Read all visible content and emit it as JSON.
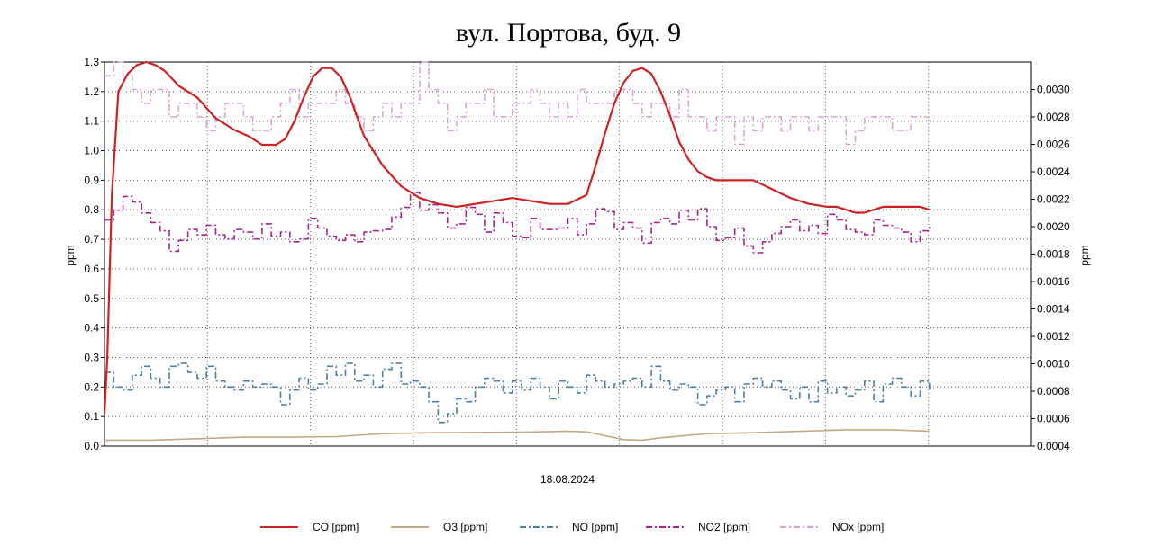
{
  "chart_data": {
    "type": "line",
    "title": "вул. Портова, буд. 9",
    "xlabel": "18.08.2024",
    "ylabel_left": "ppm",
    "ylabel_right": "ppm",
    "ylim_left": [
      0,
      1.3
    ],
    "ylim_right": [
      0.0004,
      0.0032
    ],
    "yticks_left": [
      "0.0",
      "0.1",
      "0.2",
      "0.3",
      "0.4",
      "0.5",
      "0.6",
      "0.7",
      "0.8",
      "0.9",
      "1.0",
      "1.1",
      "1.2",
      "1.3"
    ],
    "yticks_right": [
      "0.0004",
      "0.0006",
      "0.0008",
      "0.0010",
      "0.0012",
      "0.0014",
      "0.0016",
      "0.0018",
      "0.0020",
      "0.0022",
      "0.0024",
      "0.0026",
      "0.0028",
      "0.0030"
    ],
    "xlim": [
      0,
      100
    ],
    "grid": true,
    "legend_position": "bottom",
    "series": [
      {
        "name": "CO [ppm]",
        "color": "#cc2222",
        "dash": "solid",
        "axis": "left",
        "x": [
          0,
          0.3,
          0.8,
          1.5,
          2.5,
          3.5,
          4.5,
          5.5,
          6.5,
          8,
          10,
          12,
          14,
          15.5,
          17,
          18.5,
          19.5,
          20.5,
          21.5,
          22.5,
          23.5,
          24.5,
          25.5,
          26.5,
          28,
          30,
          32,
          34,
          36,
          38,
          40,
          42,
          44,
          46,
          48,
          50,
          52,
          53,
          54,
          55,
          56,
          57,
          58,
          59,
          60,
          61,
          62,
          63,
          64,
          65,
          66,
          68,
          70,
          72,
          74,
          76,
          78,
          79,
          80,
          81,
          82,
          83,
          84,
          85,
          86,
          87,
          88,
          89
        ],
        "values": [
          0.11,
          0.3,
          0.85,
          1.2,
          1.26,
          1.29,
          1.3,
          1.29,
          1.27,
          1.22,
          1.18,
          1.11,
          1.07,
          1.05,
          1.02,
          1.02,
          1.04,
          1.1,
          1.18,
          1.25,
          1.28,
          1.28,
          1.25,
          1.18,
          1.05,
          0.95,
          0.88,
          0.84,
          0.82,
          0.81,
          0.82,
          0.83,
          0.84,
          0.83,
          0.82,
          0.82,
          0.85,
          0.95,
          1.06,
          1.16,
          1.23,
          1.27,
          1.28,
          1.26,
          1.2,
          1.12,
          1.03,
          0.97,
          0.93,
          0.91,
          0.9,
          0.9,
          0.9,
          0.87,
          0.84,
          0.82,
          0.81,
          0.81,
          0.8,
          0.79,
          0.79,
          0.8,
          0.81,
          0.81,
          0.81,
          0.81,
          0.81,
          0.8
        ]
      },
      {
        "name": "O3 [ppm]",
        "color": "#c2a886",
        "dash": "solid",
        "axis": "left",
        "x": [
          0,
          5,
          10,
          15,
          20,
          25,
          30,
          35,
          40,
          45,
          50,
          52,
          54,
          56,
          58,
          60,
          65,
          70,
          75,
          80,
          85,
          89
        ],
        "values": [
          0.02,
          0.02,
          0.025,
          0.03,
          0.03,
          0.032,
          0.042,
          0.045,
          0.046,
          0.047,
          0.05,
          0.048,
          0.035,
          0.022,
          0.02,
          0.028,
          0.042,
          0.045,
          0.05,
          0.055,
          0.055,
          0.05
        ]
      },
      {
        "name": "NO [ppm]",
        "color": "#4a7f9e",
        "dash": "dashdot",
        "axis": "left",
        "x": [
          0,
          1,
          2,
          3,
          4,
          5,
          6,
          7,
          8,
          9,
          10,
          11,
          12,
          13,
          14,
          15,
          16,
          17,
          18,
          19,
          20,
          21,
          22,
          23,
          24,
          25,
          26,
          27,
          28,
          29,
          30,
          31,
          32,
          33,
          34,
          35,
          36,
          37,
          38,
          39,
          40,
          41,
          42,
          43,
          44,
          45,
          46,
          47,
          48,
          49,
          50,
          51,
          52,
          53,
          54,
          55,
          56,
          57,
          58,
          59,
          60,
          61,
          62,
          63,
          64,
          65,
          66,
          67,
          68,
          69,
          70,
          71,
          72,
          73,
          74,
          75,
          76,
          77,
          78,
          79,
          80,
          81,
          82,
          83,
          84,
          85,
          86,
          87,
          88,
          89
        ],
        "values": [
          0.25,
          0.2,
          0.19,
          0.24,
          0.27,
          0.23,
          0.2,
          0.27,
          0.28,
          0.25,
          0.23,
          0.27,
          0.22,
          0.2,
          0.19,
          0.22,
          0.2,
          0.21,
          0.2,
          0.14,
          0.19,
          0.23,
          0.19,
          0.21,
          0.27,
          0.24,
          0.28,
          0.22,
          0.24,
          0.2,
          0.26,
          0.28,
          0.21,
          0.22,
          0.2,
          0.15,
          0.08,
          0.11,
          0.16,
          0.15,
          0.2,
          0.23,
          0.22,
          0.18,
          0.22,
          0.19,
          0.23,
          0.2,
          0.16,
          0.22,
          0.2,
          0.18,
          0.24,
          0.22,
          0.2,
          0.21,
          0.22,
          0.23,
          0.2,
          0.27,
          0.22,
          0.19,
          0.21,
          0.2,
          0.14,
          0.17,
          0.19,
          0.2,
          0.15,
          0.21,
          0.23,
          0.2,
          0.22,
          0.19,
          0.16,
          0.2,
          0.15,
          0.22,
          0.18,
          0.2,
          0.17,
          0.19,
          0.22,
          0.15,
          0.21,
          0.23,
          0.2,
          0.17,
          0.22,
          0.19
        ]
      },
      {
        "name": "NO2 [ppm]",
        "color": "#a8248c",
        "dash": "dashdot",
        "axis": "right",
        "x": [
          0,
          1,
          2,
          3,
          4,
          5,
          6,
          7,
          8,
          9,
          10,
          11,
          12,
          13,
          14,
          15,
          16,
          17,
          18,
          19,
          20,
          21,
          22,
          23,
          24,
          25,
          26,
          27,
          28,
          29,
          30,
          31,
          32,
          33,
          34,
          35,
          36,
          37,
          38,
          39,
          40,
          41,
          42,
          43,
          44,
          45,
          46,
          47,
          48,
          49,
          50,
          51,
          52,
          53,
          54,
          55,
          56,
          57,
          58,
          59,
          60,
          61,
          62,
          63,
          64,
          65,
          66,
          67,
          68,
          69,
          70,
          71,
          72,
          73,
          74,
          75,
          76,
          77,
          78,
          79,
          80,
          81,
          82,
          83,
          84,
          85,
          86,
          87,
          88,
          89
        ],
        "values": [
          0.00205,
          0.00212,
          0.00222,
          0.00218,
          0.0021,
          0.00203,
          0.00197,
          0.00182,
          0.0019,
          0.00198,
          0.00194,
          0.00201,
          0.00194,
          0.00191,
          0.00198,
          0.00196,
          0.00191,
          0.00202,
          0.00193,
          0.00196,
          0.00189,
          0.00191,
          0.00206,
          0.00199,
          0.00193,
          0.0019,
          0.00194,
          0.00189,
          0.00196,
          0.00197,
          0.00198,
          0.00207,
          0.00214,
          0.00225,
          0.00212,
          0.00216,
          0.0021,
          0.00199,
          0.00202,
          0.00214,
          0.00209,
          0.00196,
          0.0021,
          0.00203,
          0.00193,
          0.00192,
          0.00206,
          0.00198,
          0.00198,
          0.00199,
          0.00206,
          0.00194,
          0.00202,
          0.00213,
          0.00211,
          0.00198,
          0.00203,
          0.00199,
          0.00188,
          0.00203,
          0.00206,
          0.00202,
          0.00212,
          0.00205,
          0.00213,
          0.002,
          0.0019,
          0.00192,
          0.00199,
          0.00186,
          0.00181,
          0.00189,
          0.00195,
          0.002,
          0.00205,
          0.00197,
          0.00201,
          0.00195,
          0.00209,
          0.00205,
          0.00198,
          0.00196,
          0.00194,
          0.00205,
          0.00201,
          0.00199,
          0.00196,
          0.00189,
          0.00197,
          0.002
        ]
      },
      {
        "name": "NOx [ppm]",
        "color": "#d8a4d6",
        "dash": "dashdot",
        "axis": "right",
        "x": [
          0,
          1,
          2,
          3,
          4,
          5,
          6,
          7,
          8,
          9,
          10,
          11,
          12,
          13,
          14,
          15,
          16,
          17,
          18,
          19,
          20,
          21,
          22,
          23,
          24,
          25,
          26,
          27,
          28,
          29,
          30,
          31,
          32,
          33,
          34,
          35,
          36,
          37,
          38,
          39,
          40,
          41,
          42,
          43,
          44,
          45,
          46,
          47,
          48,
          49,
          50,
          51,
          52,
          53,
          54,
          55,
          56,
          57,
          58,
          59,
          60,
          61,
          62,
          63,
          64,
          65,
          66,
          67,
          68,
          69,
          70,
          71,
          72,
          73,
          74,
          75,
          76,
          77,
          78,
          79,
          80,
          81,
          82,
          83,
          84,
          85,
          86,
          87,
          88,
          89
        ],
        "values": [
          0.0031,
          0.0032,
          0.0031,
          0.003,
          0.0029,
          0.003,
          0.003,
          0.0028,
          0.0029,
          0.0029,
          0.0028,
          0.0027,
          0.0028,
          0.0029,
          0.0029,
          0.0028,
          0.0027,
          0.0027,
          0.0028,
          0.0029,
          0.003,
          0.0028,
          0.0029,
          0.0029,
          0.0029,
          0.003,
          0.0029,
          0.0028,
          0.0027,
          0.0028,
          0.0029,
          0.0028,
          0.0029,
          0.0029,
          0.0032,
          0.003,
          0.0029,
          0.0027,
          0.0028,
          0.0029,
          0.0029,
          0.003,
          0.0028,
          0.0028,
          0.0029,
          0.0029,
          0.003,
          0.0029,
          0.0028,
          0.0029,
          0.0028,
          0.003,
          0.0029,
          0.0029,
          0.0029,
          0.003,
          0.003,
          0.0029,
          0.0028,
          0.0029,
          0.0029,
          0.0028,
          0.003,
          0.0028,
          0.0028,
          0.0027,
          0.0028,
          0.0028,
          0.0026,
          0.0028,
          0.0027,
          0.0028,
          0.0028,
          0.0027,
          0.0028,
          0.0028,
          0.0027,
          0.0028,
          0.0028,
          0.0028,
          0.0026,
          0.0027,
          0.0028,
          0.0028,
          0.0028,
          0.0027,
          0.0027,
          0.0028,
          0.0028,
          0.0028
        ]
      }
    ]
  }
}
